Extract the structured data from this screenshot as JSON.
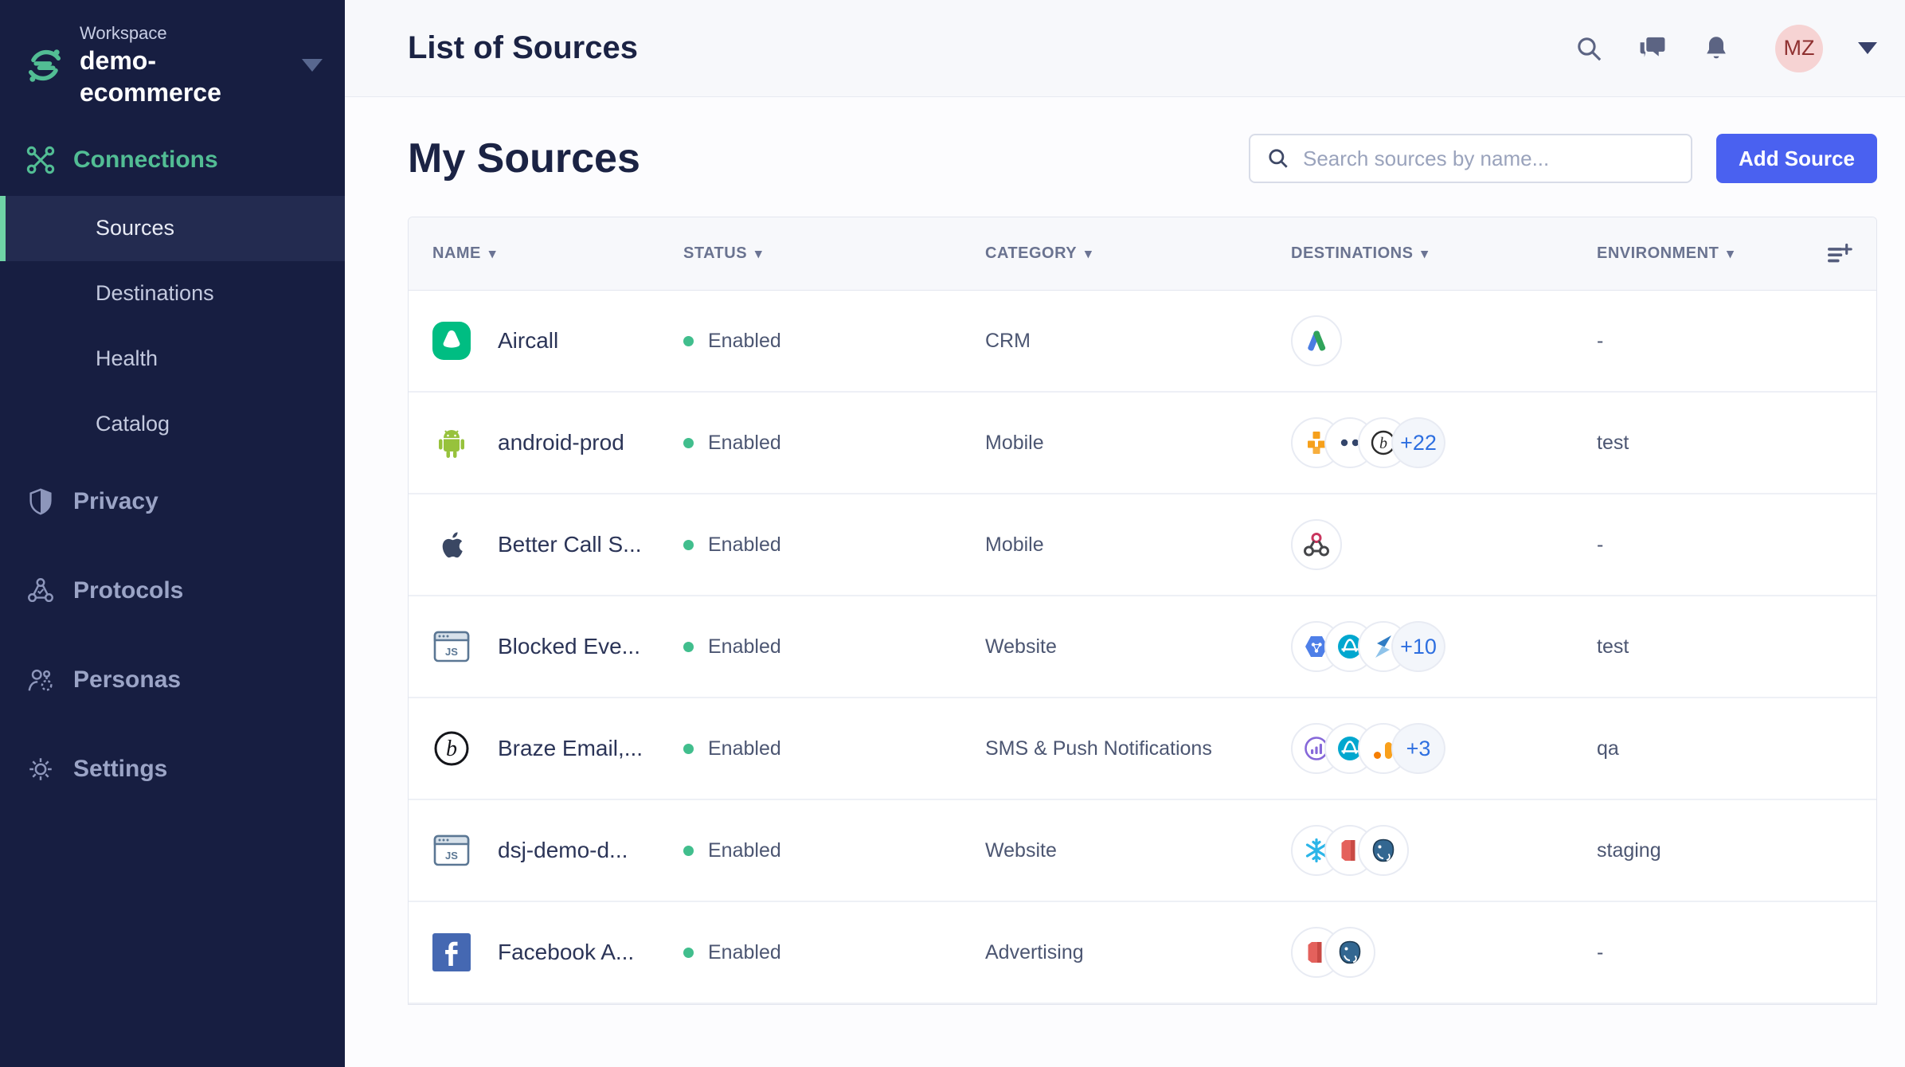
{
  "colors": {
    "brand_green": "#52BD94",
    "sidebar_bg": "#171E41",
    "active_bar_green": "#6FD3A6",
    "button_blue": "#4A61F0",
    "enabled_dot_green": "#41BE8D",
    "badge_text_blue": "#2E6FE0",
    "avatar_bg_pink": "#F6D3D3",
    "avatar_text_red": "#8F3131"
  },
  "sidebar": {
    "workspace_label": "Workspace",
    "workspace_name": "demo-ecommerce",
    "connections": {
      "label": "Connections",
      "children": [
        {
          "label": "Sources",
          "active": true
        },
        {
          "label": "Destinations",
          "active": false
        },
        {
          "label": "Health",
          "active": false
        },
        {
          "label": "Catalog",
          "active": false
        }
      ]
    },
    "sections": [
      {
        "label": "Privacy",
        "icon": "shield-icon"
      },
      {
        "label": "Protocols",
        "icon": "protocols-icon"
      },
      {
        "label": "Personas",
        "icon": "personas-icon"
      },
      {
        "label": "Settings",
        "icon": "gear-icon"
      }
    ]
  },
  "topbar": {
    "title": "List of Sources",
    "avatar_initials": "MZ"
  },
  "main": {
    "heading": "My Sources",
    "search_placeholder": "Search sources by name...",
    "add_source_label": "Add Source",
    "table": {
      "columns": [
        {
          "label": "NAME"
        },
        {
          "label": "STATUS"
        },
        {
          "label": "CATEGORY"
        },
        {
          "label": "DESTINATIONS"
        },
        {
          "label": "ENVIRONMENT"
        }
      ],
      "rows": [
        {
          "name": "Aircall",
          "icon": "aircall",
          "status": "Enabled",
          "category": "CRM",
          "destinations": [
            "google-ads"
          ],
          "more": "",
          "environment": "-"
        },
        {
          "name": "android-prod",
          "icon": "android",
          "status": "Enabled",
          "category": "Mobile",
          "destinations": [
            "aws",
            "dots",
            "braze-circle"
          ],
          "more": "+22",
          "environment": "test"
        },
        {
          "name": "Better Call S...",
          "icon": "apple",
          "status": "Enabled",
          "category": "Mobile",
          "destinations": [
            "webhook"
          ],
          "more": "",
          "environment": "-"
        },
        {
          "name": "Blocked Eve...",
          "icon": "js-browser",
          "status": "Enabled",
          "category": "Website",
          "destinations": [
            "bigquery",
            "amplitude",
            "ribbon-s"
          ],
          "more": "+10",
          "environment": "test"
        },
        {
          "name": "Braze Email,...",
          "icon": "braze",
          "status": "Enabled",
          "category": "SMS & Push Notifications",
          "destinations": [
            "mixpanel",
            "amplitude",
            "g-analytics"
          ],
          "more": "+3",
          "environment": "qa"
        },
        {
          "name": "dsj-demo-d...",
          "icon": "js-browser",
          "status": "Enabled",
          "category": "Website",
          "destinations": [
            "snowflake",
            "redshift",
            "postgres"
          ],
          "more": "",
          "environment": "staging"
        },
        {
          "name": "Facebook A...",
          "icon": "facebook",
          "status": "Enabled",
          "category": "Advertising",
          "destinations": [
            "redshift",
            "postgres"
          ],
          "more": "",
          "environment": "-"
        }
      ]
    }
  }
}
